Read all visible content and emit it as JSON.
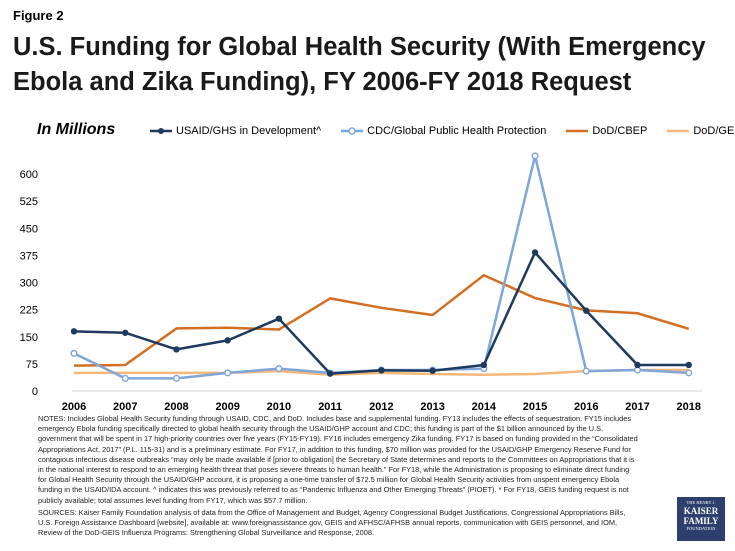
{
  "figure_label": "Figure 2",
  "title": "U.S. Funding for Global Health Security (With Emergency Ebola and Zika Funding), FY 2006-FY 2018 Request",
  "colors": {
    "usaid": "#1f3a5f",
    "cdc": "#7fa6d9",
    "dod_cbep": "#d46f22",
    "dod_geis": "#f5b87a",
    "axis": "#d0d0d0",
    "grid": "#e6e6e6"
  },
  "chart_data": {
    "type": "line",
    "units_label": "In Millions",
    "categories": [
      "2006",
      "2007",
      "2008",
      "2009",
      "2010",
      "2011",
      "2012",
      "2013",
      "2014",
      "2015",
      "2016",
      "2017",
      "2018\nRequest"
    ],
    "ylim": [
      0,
      600
    ],
    "yticks": [
      0,
      75,
      150,
      225,
      300,
      375,
      450,
      525,
      600
    ],
    "legend_position": "top",
    "grid": false,
    "series": [
      {
        "name": "USAID/GHS in Development^",
        "color_key": "usaid",
        "values": [
          165,
          161,
          115,
          140,
          200,
          48,
          57,
          56,
          72,
          383,
          222,
          72,
          72
        ]
      },
      {
        "name": "CDC/Global Public Health Protection",
        "color_key": "cdc",
        "values": [
          104,
          35,
          35,
          50,
          62,
          50,
          58,
          58,
          62,
          650,
          55,
          58,
          50
        ]
      },
      {
        "name": "DoD/CBEP",
        "color_key": "dod_cbep",
        "values": [
          70,
          72,
          173,
          175,
          170,
          256,
          230,
          210,
          320,
          257,
          223,
          215,
          172
        ]
      },
      {
        "name": "DoD/GEIS*",
        "color_key": "dod_geis",
        "values": [
          50,
          50,
          50,
          50,
          55,
          45,
          50,
          47,
          45,
          47,
          55,
          58,
          58
        ]
      }
    ]
  },
  "notes": "NOTES:  Includes Global Health Security funding through USAID, CDC, and DoD. Includes base and supplemental funding. FY13 includes the effects of sequestration. FY15 includes emergency Ebola funding specifically directed to global health security through the USAID/GHP account and CDC; this funding is part of the $1 billion announced by the U.S. government that will be spent in 17 high-priority countries over five years (FY15-FY19). FY16 includes emergency Zika funding. FY17 is based on funding provided in the “Consolidated Appropriations Act, 2017” (P.L. 115-31) and is a preliminary estimate. For FY17, in addition to this funding, $70 million was provided for the USAID/GHP Emergency Reserve Fund for contagious infectious disease outbreaks “may only be made available if [prior to obligation] the Secretary of State determines and reports to the Committees on Appropriations that it is in the national interest to respond to an emerging health threat that poses severe threats to human health.” For FY18, while the Administration is proposing to eliminate direct funding for Global Health Security through the USAID/GHP account, it is proposing a one-time transfer of $72.5 million for Global Health Security activities from unspent emergency Ebola funding in the USAID/IDA account. ^ indicates this was previously referred to as “Pandemic Influenza and Other Emerging Threats” (PIOET). * For FY18, GEIS funding request is not publicly available; total assumes level funding from FY17, which was $57.7 million.",
  "sources": "SOURCES:  Kaiser Family Foundation analysis of data from the Office of Management and Budget, Agency Congressional Budget Justifications, Congressional Appropriations Bills, U.S. Foreign Assistance Dashboard [website], available at: www.foreignassistance.gov, GEIS and AFHSC/AFHSB annual reports, communication with GEIS personnel, and IOM, Review of the DoD-GEIS Influenza Programs: Strengthening Global Surveillance and Response, 2008.",
  "logo": {
    "line1": "THE HENRY J.",
    "line2": "KAISER FAMILY",
    "line3": "FOUNDATION"
  }
}
